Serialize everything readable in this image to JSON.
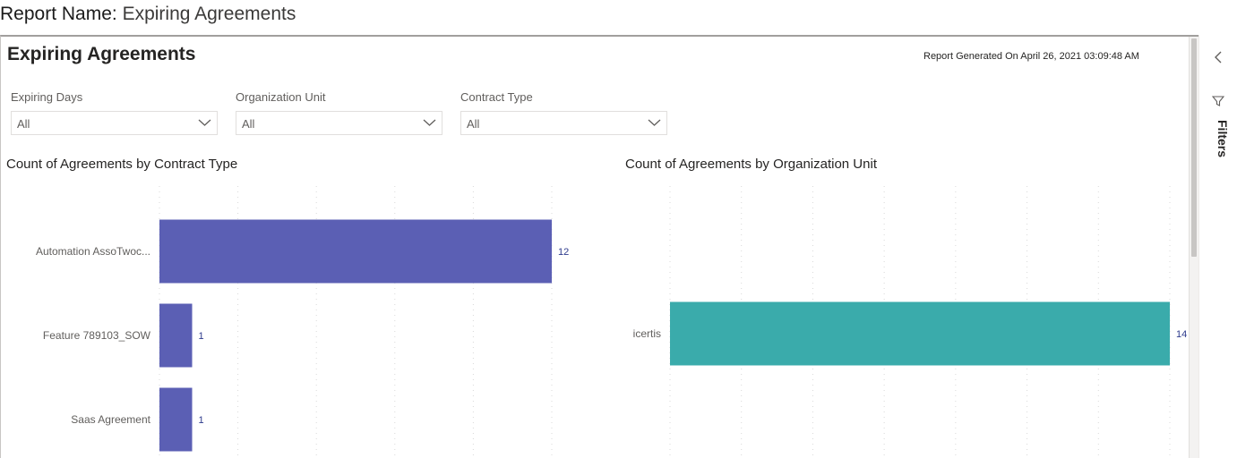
{
  "report_header": {
    "label": "Report Name:",
    "value": "Expiring Agreements"
  },
  "page": {
    "title": "Expiring Agreements",
    "generated": "Report Generated On April 26, 2021 03:09:48 AM"
  },
  "slicers": [
    {
      "label": "Expiring Days",
      "value": "All"
    },
    {
      "label": "Organization Unit",
      "value": "All"
    },
    {
      "label": "Contract Type",
      "value": "All"
    }
  ],
  "filters_pane": {
    "label": "Filters",
    "collapse_icon": "chevron-left-icon",
    "filter_icon": "filter-icon"
  },
  "chart_data": [
    {
      "type": "bar",
      "orientation": "horizontal",
      "title": "Count of Agreements by Contract Type",
      "categories": [
        "Automation AssoTwoc...",
        "Feature 789103_SOW",
        "Saas Agreement"
      ],
      "values": [
        12,
        1,
        1
      ],
      "xlim": [
        0,
        12
      ],
      "grid": true,
      "color": "#5b5fb4",
      "label_color": "#2d3a8c"
    },
    {
      "type": "bar",
      "orientation": "horizontal",
      "title": "Count of Agreements by Organization Unit",
      "categories": [
        "icertis"
      ],
      "values": [
        14
      ],
      "xlim": [
        0,
        14
      ],
      "grid": true,
      "color": "#3aabab",
      "label_color": "#2d3a8c"
    }
  ]
}
